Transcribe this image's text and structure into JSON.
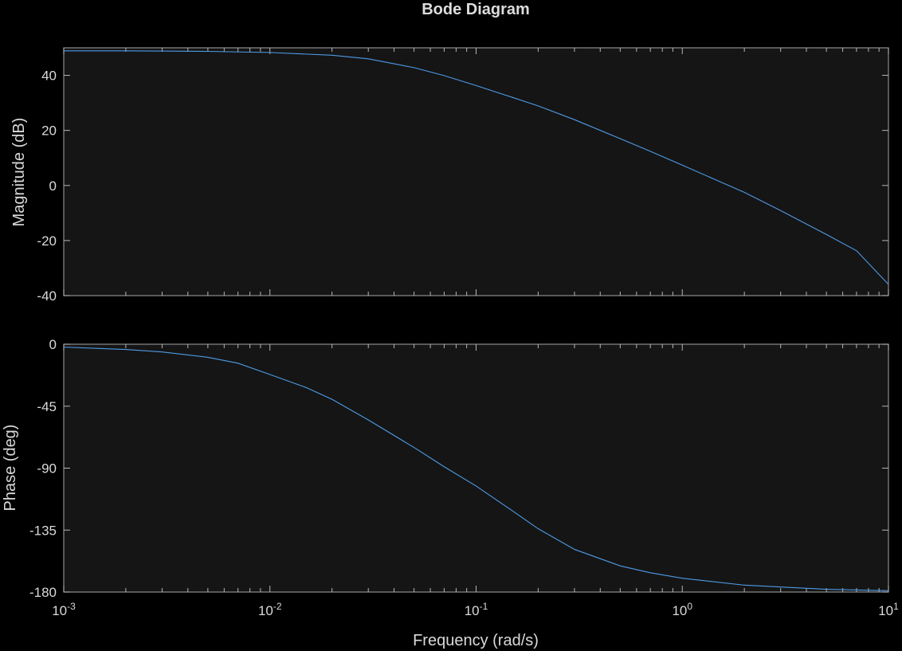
{
  "chart_data": {
    "type": "line",
    "title": "Bode Diagram",
    "xlabel": "Frequency (rad/s)",
    "xscale": "log",
    "xlim": [
      0.001,
      10
    ],
    "x_tick_exponents": [
      "-3",
      "-2",
      "-1",
      "0",
      "1"
    ],
    "x_tick_base": "10",
    "grid": false,
    "line_color": "#4d9be6",
    "background_color": "#000000",
    "axes_color": "#151515",
    "panels": [
      {
        "name": "magnitude",
        "ylabel": "Magnitude (dB)",
        "ylim": [
          -40,
          50
        ],
        "yticks": [
          -40,
          -20,
          0,
          20,
          40
        ],
        "ytick_labels": [
          "-40",
          "-20",
          "0",
          "20",
          "40"
        ],
        "x": [
          0.001,
          0.002,
          0.005,
          0.01,
          0.02,
          0.03,
          0.05,
          0.07,
          0.1,
          0.15,
          0.2,
          0.3,
          0.5,
          0.7,
          1,
          1.5,
          2,
          3,
          5,
          7,
          10
        ],
        "y": [
          48.9,
          48.9,
          48.7,
          48.3,
          47.3,
          46.0,
          42.8,
          39.9,
          36.3,
          32.0,
          28.9,
          23.9,
          17.0,
          12.4,
          7.4,
          1.6,
          -2.5,
          -9.1,
          -17.8,
          -23.7,
          -35.9
        ]
      },
      {
        "name": "phase",
        "ylabel": "Phase (deg)",
        "ylim": [
          -180,
          0
        ],
        "yticks": [
          -180,
          -135,
          -90,
          -45,
          0
        ],
        "ytick_labels": [
          "-180",
          "-135",
          "-90",
          "-45",
          "0"
        ],
        "x": [
          0.001,
          0.002,
          0.003,
          0.005,
          0.007,
          0.01,
          0.015,
          0.02,
          0.03,
          0.05,
          0.07,
          0.1,
          0.15,
          0.2,
          0.3,
          0.5,
          0.7,
          1,
          2,
          5,
          10
        ],
        "y": [
          -2.1,
          -3.8,
          -5.6,
          -9.5,
          -13.8,
          -22.0,
          -31.5,
          -40.0,
          -55.0,
          -75.0,
          -89.0,
          -103.0,
          -121.0,
          -134.0,
          -149.0,
          -161.0,
          -166.0,
          -170.0,
          -175.0,
          -178.0,
          -179.0
        ]
      }
    ]
  }
}
